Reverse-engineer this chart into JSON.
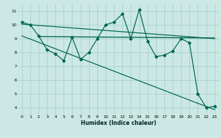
{
  "xlabel": "Humidex (Indice chaleur)",
  "bg_color": "#cce8e4",
  "grid_color": "#aad4cc",
  "line_color": "#006655",
  "xlim": [
    -0.5,
    23.5
  ],
  "ylim": [
    3.5,
    11.5
  ],
  "xticks": [
    0,
    1,
    2,
    3,
    4,
    5,
    6,
    7,
    8,
    9,
    10,
    11,
    12,
    13,
    14,
    15,
    16,
    17,
    18,
    19,
    20,
    21,
    22,
    23
  ],
  "yticks": [
    4,
    5,
    6,
    7,
    8,
    9,
    10,
    11
  ],
  "main_series_x": [
    0,
    1,
    2,
    3,
    4,
    5,
    6,
    7,
    8,
    9,
    10,
    11,
    12,
    13,
    14,
    15,
    16,
    17,
    18,
    19,
    20,
    21,
    22,
    23
  ],
  "main_series_y": [
    10.2,
    10.0,
    9.2,
    8.2,
    7.9,
    7.4,
    9.1,
    7.5,
    8.0,
    9.0,
    10.0,
    10.2,
    10.8,
    9.0,
    11.1,
    8.8,
    7.7,
    7.8,
    8.1,
    9.0,
    8.7,
    5.0,
    4.0,
    4.1
  ],
  "trend1_x": [
    0,
    23
  ],
  "trend1_y": [
    10.05,
    9.0
  ],
  "trend2_x": [
    2,
    23
  ],
  "trend2_y": [
    9.15,
    9.05
  ],
  "trend3_x": [
    0,
    23
  ],
  "trend3_y": [
    9.2,
    3.85
  ]
}
